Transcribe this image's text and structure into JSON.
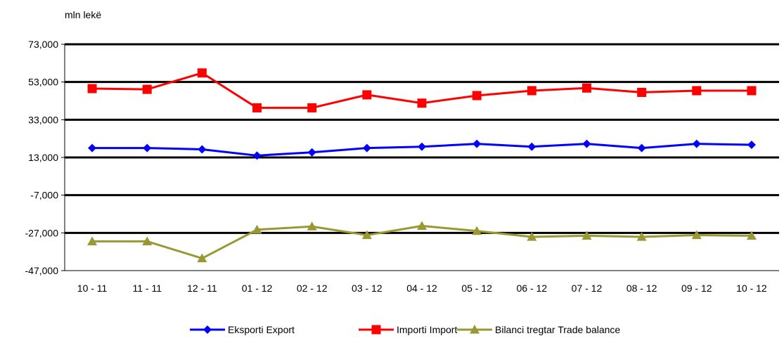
{
  "chart_data": {
    "type": "line",
    "ylabel": "mln lekë",
    "xlabel": "",
    "categories": [
      "10 - 11",
      "11 - 11",
      "12 - 11",
      "01 - 12",
      "02 - 12",
      "03 - 12",
      "04 - 12",
      "05 - 12",
      "06 - 12",
      "07 - 12",
      "08 - 12",
      "09 - 12",
      "10 - 12"
    ],
    "ylim": [
      -47000,
      73000
    ],
    "yticks": [
      73000,
      53000,
      33000,
      13000,
      -7000,
      -27000,
      -47000
    ],
    "ytick_labels": [
      "73,000",
      "53,000",
      "33,000",
      "13,000",
      "-7,000",
      "-27,000",
      "-47,000"
    ],
    "grid": true,
    "legend_position": "bottom",
    "series": [
      {
        "name": "Eksporti Export",
        "color": "#0000ff",
        "marker": "diamond",
        "values": [
          18000,
          18000,
          17300,
          14000,
          15700,
          18000,
          18700,
          20200,
          18700,
          20200,
          18000,
          20200,
          19700
        ]
      },
      {
        "name": "Importi Import",
        "color": "#ff0000",
        "marker": "square",
        "values": [
          49500,
          49100,
          57800,
          39300,
          39300,
          46200,
          41800,
          45800,
          48400,
          49800,
          47500,
          48400,
          48400
        ]
      },
      {
        "name": "Bilanci tregtar Trade balance",
        "color": "#999933",
        "marker": "triangle",
        "values": [
          -31500,
          -31500,
          -40500,
          -25300,
          -23600,
          -28200,
          -23300,
          -26000,
          -29100,
          -28500,
          -29100,
          -28200,
          -28500
        ]
      }
    ]
  }
}
